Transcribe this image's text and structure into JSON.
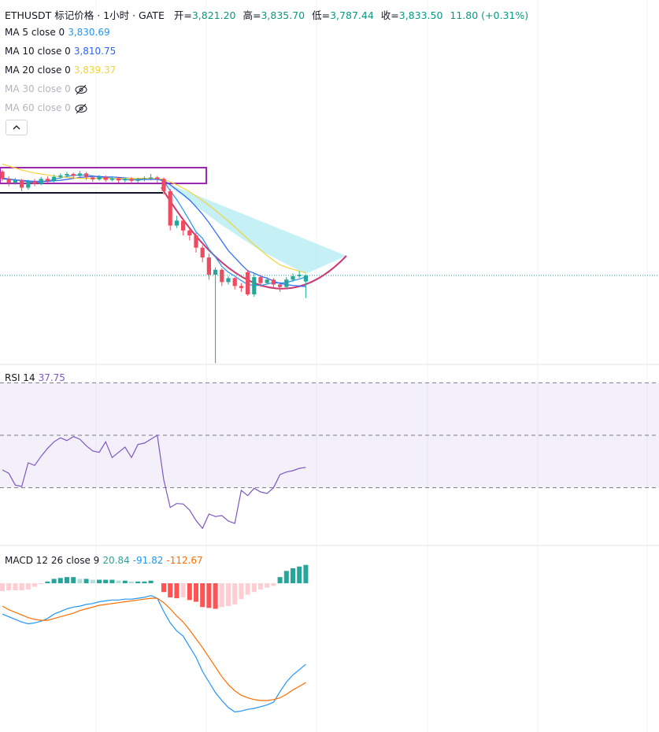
{
  "header": {
    "symbol": "ETHUSDT 标记价格 · 1小时 · GATE",
    "ohlc": [
      {
        "label": "开=",
        "value": "3,821.20"
      },
      {
        "label": "高=",
        "value": "3,835.70"
      },
      {
        "label": "低=",
        "value": "3,787.44"
      },
      {
        "label": "收=",
        "value": "3,833.50"
      }
    ],
    "change": "11.80 (+0.31%)"
  },
  "chart_data": [
    {
      "type": "candlestick",
      "ylim": [
        3654,
        4394
      ],
      "up_color": "#26a69a",
      "down_color": "#ef4a5f",
      "last_price_color": "#26a69a",
      "open": [
        4045,
        4030,
        4022,
        4028,
        4012,
        4025,
        4020,
        4030,
        4026,
        4034,
        4037,
        4040,
        4036,
        4041,
        4033,
        4029,
        4034,
        4028,
        4031,
        4027,
        4030,
        4026,
        4029,
        4031,
        4033,
        4030,
        4005,
        3935,
        3945,
        3925,
        3915,
        3890,
        3870,
        3835,
        3845,
        3820,
        3828,
        3812,
        3840,
        3795,
        3830,
        3818,
        3825,
        3815,
        3810,
        3825,
        3832,
        3821.2
      ],
      "high": [
        4048,
        4035,
        4032,
        4030,
        4028,
        4030,
        4034,
        4035,
        4038,
        4041,
        4044,
        4043,
        4046,
        4044,
        4037,
        4038,
        4037,
        4035,
        4034,
        4033,
        4034,
        4032,
        4035,
        4040,
        4036,
        4033,
        4010,
        3955,
        3950,
        3930,
        3920,
        3895,
        3878,
        3850,
        3848,
        3832,
        3830,
        3818,
        3845,
        3838,
        3835,
        3830,
        3828,
        3820,
        3830,
        3838,
        3842,
        3835.7
      ],
      "low": [
        4025,
        4015,
        4018,
        4005,
        4008,
        4015,
        4017,
        4022,
        4023,
        4030,
        4033,
        4031,
        4032,
        4028,
        4024,
        4026,
        4024,
        4025,
        4022,
        4023,
        4021,
        4022,
        4025,
        4027,
        4022,
        3998,
        3925,
        3930,
        3915,
        3905,
        3880,
        3860,
        3825,
        3655,
        3812,
        3815,
        3805,
        3800,
        3792,
        3790,
        3810,
        3815,
        3808,
        3800,
        3805,
        3820,
        3828,
        3787.44
      ],
      "close": [
        4030,
        4022,
        4028,
        4012,
        4025,
        4020,
        4030,
        4026,
        4034,
        4037,
        4040,
        4036,
        4041,
        4033,
        4029,
        4034,
        4028,
        4031,
        4027,
        4030,
        4026,
        4029,
        4031,
        4033,
        4030,
        4005,
        3935,
        3945,
        3925,
        3915,
        3890,
        3870,
        3835,
        3845,
        3820,
        3828,
        3812,
        3808,
        3795,
        3830,
        3818,
        3825,
        3815,
        3810,
        3825,
        3832,
        3835,
        3833.5
      ],
      "series": [
        {
          "name": "MA 5 close 0",
          "value_label": "3,830.69",
          "color": "#2196f3",
          "values": [
            4032,
            4030,
            4028,
            4026,
            4024,
            4023,
            4024,
            4026,
            4029,
            4032,
            4035,
            4037,
            4038,
            4038,
            4036,
            4034,
            4033,
            4031,
            4030,
            4029,
            4028,
            4028,
            4029,
            4030,
            4030,
            4025,
            4006,
            3988,
            3967,
            3945,
            3922,
            3909,
            3887,
            3871,
            3852,
            3840,
            3832,
            3823,
            3815,
            3813,
            3813,
            3816,
            3819,
            3818,
            3819,
            3823,
            3826,
            3830.69
          ]
        },
        {
          "name": "MA 10 close 0",
          "value_label": "3,810.75",
          "color": "#2962ff",
          "values": [
            4030,
            4029,
            4028,
            4027,
            4026,
            4025,
            4025,
            4025,
            4026,
            4027,
            4029,
            4031,
            4033,
            4034,
            4035,
            4035,
            4034,
            4034,
            4033,
            4032,
            4031,
            4030,
            4029,
            4029,
            4029,
            4027,
            4018,
            4008,
            3998,
            3987,
            3973,
            3958,
            3941,
            3922,
            3903,
            3884,
            3870,
            3856,
            3843,
            3838,
            3832,
            3828,
            3822,
            3817,
            3815,
            3813,
            3812,
            3810.75
          ]
        },
        {
          "name": "MA 20 close 0",
          "value_label": "3,839.37",
          "color": "#f2d33a",
          "values": [
            4060,
            4056,
            4052,
            4048,
            4045,
            4042,
            4040,
            4038,
            4036,
            4034,
            4033,
            4032,
            4031,
            4031,
            4031,
            4031,
            4031,
            4031,
            4031,
            4031,
            4031,
            4031,
            4031,
            4031,
            4031,
            4029,
            4024,
            4018,
            4011,
            4004,
            3995,
            3986,
            3976,
            3966,
            3955,
            3944,
            3932,
            3920,
            3908,
            3896,
            3885,
            3874,
            3864,
            3855,
            3850,
            3846,
            3842,
            3839.37
          ]
        },
        {
          "name": "MA 30 close 0",
          "hidden": true
        },
        {
          "name": "MA 60 close 0",
          "hidden": true
        }
      ]
    },
    {
      "type": "line",
      "title": "RSI 14",
      "ylim": [
        8.3,
        76.7
      ],
      "levels": [
        30,
        50,
        70
      ],
      "band_color": "#7e57c2",
      "series": [
        {
          "color": "#7e57c2",
          "values": [
            36.8,
            35.5,
            31,
            30.5,
            39.5,
            38.5,
            42,
            45,
            47.5,
            49,
            48,
            49.5,
            48.5,
            46,
            44,
            43.5,
            47.5,
            41.5,
            43.5,
            45.5,
            41.5,
            46.5,
            47,
            48.5,
            50,
            33,
            22.5,
            24,
            23.8,
            21.5,
            17.5,
            14.5,
            20,
            19,
            19.4,
            17.3,
            16.4,
            29,
            27,
            29.8,
            28.4,
            27.8,
            30,
            35,
            36,
            36.5,
            37.4,
            37.75
          ]
        }
      ]
    },
    {
      "type": "macd",
      "title": "MACD 12 26 close 9",
      "ylim": [
        -168.75,
        42
      ],
      "histogram": {
        "colors": [
          "#26a69a",
          "#b2dfdb",
          "#ffcdd2",
          "#ff5252"
        ],
        "values": [
          -9,
          -8,
          -8,
          -8,
          -7,
          -4,
          -1,
          2,
          5,
          6,
          7,
          7,
          5,
          5,
          4,
          4,
          4,
          4,
          3,
          3,
          2,
          2,
          2,
          3,
          0,
          -10,
          -16,
          -17,
          -16,
          -19,
          -21,
          -27,
          -28,
          -29,
          -27,
          -26,
          -24,
          -18,
          -13,
          -10,
          -7,
          -5,
          -3,
          7,
          14,
          17,
          19,
          20.84
        ]
      },
      "series": [
        {
          "color": "#2196f3",
          "values": [
            -35,
            -38,
            -41,
            -44,
            -46,
            -45,
            -43,
            -40,
            -35,
            -32,
            -29,
            -27,
            -26,
            -24,
            -23,
            -21,
            -20,
            -19,
            -19,
            -18,
            -18,
            -17,
            -16,
            -14,
            -17,
            -32,
            -45,
            -54,
            -60,
            -72,
            -84,
            -100,
            -112,
            -124,
            -133,
            -141,
            -146,
            -145,
            -143,
            -142,
            -140,
            -138,
            -135,
            -123,
            -112,
            -104,
            -98,
            -91.82
          ]
        },
        {
          "color": "#ff6d00",
          "values": [
            -26,
            -30,
            -33,
            -36,
            -39,
            -41,
            -42,
            -42,
            -40,
            -38,
            -36,
            -34,
            -31,
            -29,
            -27,
            -25,
            -24,
            -23,
            -22,
            -21,
            -20,
            -19,
            -18,
            -17,
            -17,
            -22,
            -29,
            -37,
            -44,
            -53,
            -63,
            -73,
            -84,
            -95,
            -106,
            -115,
            -122,
            -127,
            -130,
            -132,
            -133,
            -133,
            -132,
            -130,
            -126,
            -121,
            -117,
            -112.67
          ]
        }
      ]
    }
  ]
}
